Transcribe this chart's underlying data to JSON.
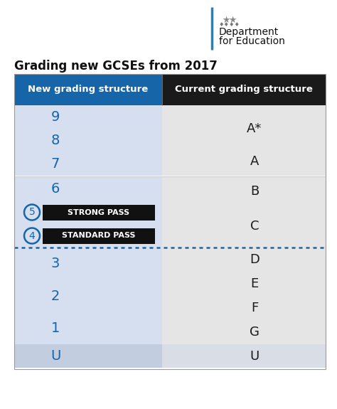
{
  "title": "Grading new GCSEs from 2017",
  "header_left": "New grading structure",
  "header_right": "Current grading structure",
  "header_left_bg": "#1565a8",
  "header_right_bg": "#1a1a1a",
  "header_text_color": "#ffffff",
  "left_col_bg": "#d6dff0",
  "right_col_bg": "#e5e5e5",
  "u_left_bg": "#c2cedf",
  "u_right_bg": "#d8dde6",
  "white_gap": "#ffffff",
  "strong_pass_text": "STRONG PASS",
  "standard_pass_text": "STANDARD PASS",
  "pass_box_color": "#111111",
  "pass_text_color": "#ffffff",
  "blue": "#1565a8",
  "black": "#1a1a1a",
  "dotted_color": "#1565a8",
  "grade_left": [
    "9",
    "8",
    "7",
    "6",
    "5",
    "4",
    "3",
    "2",
    "1",
    "U"
  ],
  "grade_right_labels": [
    "A*",
    "A",
    "B",
    "C",
    "D",
    "E",
    "F",
    "G",
    "U"
  ],
  "fig_w": 4.74,
  "fig_h": 5.75,
  "dpi": 100
}
